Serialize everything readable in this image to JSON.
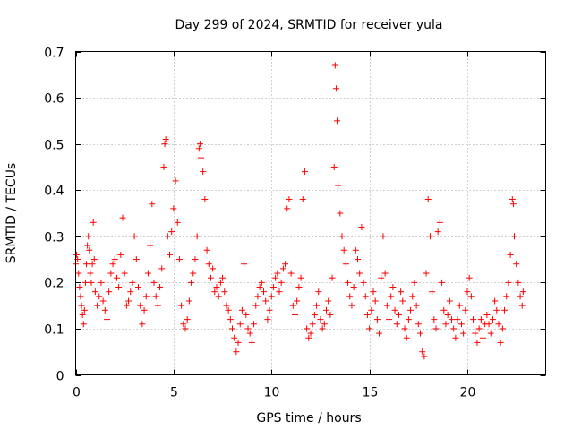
{
  "chart_data": {
    "type": "scatter",
    "title": "Day 299 of 2024, SRMTID for receiver yula",
    "xlabel": "GPS time / hours",
    "ylabel": "SRMTID / TECUs",
    "xlim": [
      0,
      24
    ],
    "ylim": [
      0,
      0.7
    ],
    "grid": true,
    "marker": "+",
    "marker_color": "#ff0000",
    "xticks": [
      0,
      5,
      10,
      15,
      20
    ],
    "xtick_labels": [
      "0",
      "5",
      "10",
      "15",
      "20"
    ],
    "yticks": [
      0,
      0.1,
      0.2,
      0.3,
      0.4,
      0.5,
      0.6,
      0.7
    ],
    "ytick_labels": [
      "0",
      "0.1",
      "0.2",
      "0.3",
      "0.4",
      "0.5",
      "0.6",
      "0.7"
    ],
    "series": [
      {
        "name": "SRMTID",
        "points": [
          [
            0.0,
            0.24
          ],
          [
            0.05,
            0.26
          ],
          [
            0.1,
            0.25
          ],
          [
            0.15,
            0.22
          ],
          [
            0.2,
            0.19
          ],
          [
            0.25,
            0.17
          ],
          [
            0.3,
            0.15
          ],
          [
            0.35,
            0.13
          ],
          [
            0.4,
            0.11
          ],
          [
            0.45,
            0.14
          ],
          [
            0.5,
            0.2
          ],
          [
            0.55,
            0.24
          ],
          [
            0.6,
            0.28
          ],
          [
            0.65,
            0.3
          ],
          [
            0.7,
            0.27
          ],
          [
            0.75,
            0.22
          ],
          [
            0.8,
            0.2
          ],
          [
            0.85,
            0.24
          ],
          [
            0.9,
            0.33
          ],
          [
            0.95,
            0.25
          ],
          [
            1.0,
            0.18
          ],
          [
            1.1,
            0.15
          ],
          [
            1.2,
            0.17
          ],
          [
            1.3,
            0.2
          ],
          [
            1.4,
            0.16
          ],
          [
            1.5,
            0.14
          ],
          [
            1.6,
            0.12
          ],
          [
            1.7,
            0.18
          ],
          [
            1.8,
            0.22
          ],
          [
            1.9,
            0.24
          ],
          [
            2.0,
            0.25
          ],
          [
            2.1,
            0.21
          ],
          [
            2.2,
            0.19
          ],
          [
            2.3,
            0.26
          ],
          [
            2.4,
            0.34
          ],
          [
            2.5,
            0.22
          ],
          [
            2.6,
            0.15
          ],
          [
            2.7,
            0.16
          ],
          [
            2.8,
            0.18
          ],
          [
            2.9,
            0.2
          ],
          [
            3.0,
            0.3
          ],
          [
            3.1,
            0.25
          ],
          [
            3.2,
            0.19
          ],
          [
            3.3,
            0.15
          ],
          [
            3.4,
            0.11
          ],
          [
            3.5,
            0.14
          ],
          [
            3.6,
            0.17
          ],
          [
            3.7,
            0.22
          ],
          [
            3.8,
            0.28
          ],
          [
            3.9,
            0.37
          ],
          [
            4.0,
            0.2
          ],
          [
            4.1,
            0.17
          ],
          [
            4.2,
            0.15
          ],
          [
            4.3,
            0.19
          ],
          [
            4.4,
            0.23
          ],
          [
            4.5,
            0.45
          ],
          [
            4.55,
            0.5
          ],
          [
            4.6,
            0.51
          ],
          [
            4.7,
            0.3
          ],
          [
            4.8,
            0.26
          ],
          [
            4.9,
            0.31
          ],
          [
            5.0,
            0.36
          ],
          [
            5.1,
            0.42
          ],
          [
            5.2,
            0.33
          ],
          [
            5.3,
            0.25
          ],
          [
            5.4,
            0.15
          ],
          [
            5.5,
            0.11
          ],
          [
            5.6,
            0.1
          ],
          [
            5.7,
            0.12
          ],
          [
            5.8,
            0.16
          ],
          [
            5.9,
            0.2
          ],
          [
            6.0,
            0.22
          ],
          [
            6.1,
            0.25
          ],
          [
            6.2,
            0.3
          ],
          [
            6.3,
            0.49
          ],
          [
            6.35,
            0.5
          ],
          [
            6.4,
            0.47
          ],
          [
            6.5,
            0.44
          ],
          [
            6.6,
            0.38
          ],
          [
            6.7,
            0.27
          ],
          [
            6.8,
            0.24
          ],
          [
            6.9,
            0.21
          ],
          [
            7.0,
            0.23
          ],
          [
            7.1,
            0.18
          ],
          [
            7.2,
            0.19
          ],
          [
            7.3,
            0.17
          ],
          [
            7.4,
            0.2
          ],
          [
            7.5,
            0.21
          ],
          [
            7.6,
            0.18
          ],
          [
            7.7,
            0.15
          ],
          [
            7.8,
            0.14
          ],
          [
            7.9,
            0.12
          ],
          [
            8.0,
            0.1
          ],
          [
            8.1,
            0.08
          ],
          [
            8.2,
            0.05
          ],
          [
            8.3,
            0.07
          ],
          [
            8.4,
            0.11
          ],
          [
            8.5,
            0.14
          ],
          [
            8.6,
            0.24
          ],
          [
            8.7,
            0.13
          ],
          [
            8.8,
            0.1
          ],
          [
            8.9,
            0.09
          ],
          [
            9.0,
            0.07
          ],
          [
            9.1,
            0.11
          ],
          [
            9.2,
            0.15
          ],
          [
            9.3,
            0.17
          ],
          [
            9.4,
            0.19
          ],
          [
            9.5,
            0.2
          ],
          [
            9.6,
            0.18
          ],
          [
            9.7,
            0.16
          ],
          [
            9.8,
            0.12
          ],
          [
            9.9,
            0.14
          ],
          [
            10.0,
            0.17
          ],
          [
            10.1,
            0.19
          ],
          [
            10.2,
            0.21
          ],
          [
            10.3,
            0.22
          ],
          [
            10.4,
            0.18
          ],
          [
            10.5,
            0.2
          ],
          [
            10.6,
            0.23
          ],
          [
            10.7,
            0.24
          ],
          [
            10.8,
            0.36
          ],
          [
            10.9,
            0.38
          ],
          [
            11.0,
            0.22
          ],
          [
            11.1,
            0.15
          ],
          [
            11.2,
            0.13
          ],
          [
            11.3,
            0.16
          ],
          [
            11.4,
            0.19
          ],
          [
            11.5,
            0.21
          ],
          [
            11.6,
            0.38
          ],
          [
            11.7,
            0.44
          ],
          [
            11.8,
            0.1
          ],
          [
            11.9,
            0.08
          ],
          [
            12.0,
            0.09
          ],
          [
            12.1,
            0.11
          ],
          [
            12.2,
            0.13
          ],
          [
            12.3,
            0.15
          ],
          [
            12.4,
            0.18
          ],
          [
            12.5,
            0.12
          ],
          [
            12.6,
            0.1
          ],
          [
            12.7,
            0.11
          ],
          [
            12.8,
            0.14
          ],
          [
            12.9,
            0.16
          ],
          [
            13.0,
            0.13
          ],
          [
            13.1,
            0.21
          ],
          [
            13.2,
            0.45
          ],
          [
            13.25,
            0.67
          ],
          [
            13.3,
            0.62
          ],
          [
            13.35,
            0.55
          ],
          [
            13.4,
            0.41
          ],
          [
            13.5,
            0.35
          ],
          [
            13.6,
            0.3
          ],
          [
            13.7,
            0.27
          ],
          [
            13.8,
            0.24
          ],
          [
            13.9,
            0.2
          ],
          [
            14.0,
            0.17
          ],
          [
            14.1,
            0.15
          ],
          [
            14.2,
            0.19
          ],
          [
            14.3,
            0.27
          ],
          [
            14.4,
            0.25
          ],
          [
            14.5,
            0.22
          ],
          [
            14.6,
            0.32
          ],
          [
            14.7,
            0.2
          ],
          [
            14.8,
            0.17
          ],
          [
            14.9,
            0.13
          ],
          [
            15.0,
            0.1
          ],
          [
            15.1,
            0.14
          ],
          [
            15.2,
            0.18
          ],
          [
            15.3,
            0.16
          ],
          [
            15.4,
            0.12
          ],
          [
            15.5,
            0.09
          ],
          [
            15.6,
            0.21
          ],
          [
            15.7,
            0.3
          ],
          [
            15.8,
            0.22
          ],
          [
            15.9,
            0.15
          ],
          [
            16.0,
            0.12
          ],
          [
            16.1,
            0.17
          ],
          [
            16.2,
            0.19
          ],
          [
            16.3,
            0.14
          ],
          [
            16.4,
            0.11
          ],
          [
            16.5,
            0.13
          ],
          [
            16.6,
            0.18
          ],
          [
            16.7,
            0.16
          ],
          [
            16.8,
            0.1
          ],
          [
            16.9,
            0.08
          ],
          [
            17.0,
            0.12
          ],
          [
            17.1,
            0.14
          ],
          [
            17.2,
            0.17
          ],
          [
            17.3,
            0.2
          ],
          [
            17.4,
            0.15
          ],
          [
            17.5,
            0.11
          ],
          [
            17.6,
            0.09
          ],
          [
            17.7,
            0.05
          ],
          [
            17.8,
            0.04
          ],
          [
            17.9,
            0.22
          ],
          [
            18.0,
            0.38
          ],
          [
            18.1,
            0.3
          ],
          [
            18.2,
            0.18
          ],
          [
            18.3,
            0.12
          ],
          [
            18.4,
            0.1
          ],
          [
            18.5,
            0.31
          ],
          [
            18.6,
            0.33
          ],
          [
            18.7,
            0.2
          ],
          [
            18.8,
            0.14
          ],
          [
            18.9,
            0.11
          ],
          [
            19.0,
            0.13
          ],
          [
            19.1,
            0.16
          ],
          [
            19.2,
            0.12
          ],
          [
            19.3,
            0.1
          ],
          [
            19.4,
            0.08
          ],
          [
            19.5,
            0.12
          ],
          [
            19.6,
            0.15
          ],
          [
            19.7,
            0.11
          ],
          [
            19.8,
            0.09
          ],
          [
            19.9,
            0.14
          ],
          [
            20.0,
            0.18
          ],
          [
            20.1,
            0.21
          ],
          [
            20.2,
            0.17
          ],
          [
            20.3,
            0.12
          ],
          [
            20.4,
            0.09
          ],
          [
            20.5,
            0.07
          ],
          [
            20.6,
            0.1
          ],
          [
            20.7,
            0.12
          ],
          [
            20.8,
            0.08
          ],
          [
            20.9,
            0.11
          ],
          [
            21.0,
            0.13
          ],
          [
            21.1,
            0.11
          ],
          [
            21.2,
            0.09
          ],
          [
            21.3,
            0.12
          ],
          [
            21.4,
            0.16
          ],
          [
            21.5,
            0.14
          ],
          [
            21.6,
            0.11
          ],
          [
            21.7,
            0.07
          ],
          [
            21.8,
            0.1
          ],
          [
            21.9,
            0.14
          ],
          [
            22.0,
            0.17
          ],
          [
            22.1,
            0.2
          ],
          [
            22.2,
            0.26
          ],
          [
            22.3,
            0.38
          ],
          [
            22.35,
            0.37
          ],
          [
            22.4,
            0.3
          ],
          [
            22.5,
            0.24
          ],
          [
            22.6,
            0.2
          ],
          [
            22.7,
            0.17
          ],
          [
            22.8,
            0.15
          ],
          [
            22.85,
            0.18
          ]
        ]
      }
    ]
  }
}
